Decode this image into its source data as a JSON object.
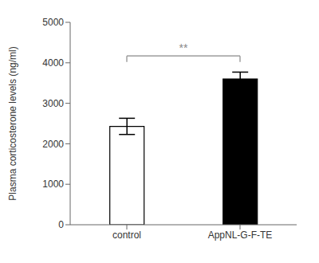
{
  "chart_data": {
    "type": "bar",
    "ylabel": "Plasma corticosterone levels (ng/ml)",
    "categories": [
      "control",
      "AppNL-G-F-TE"
    ],
    "values": [
      2430,
      3600
    ],
    "errors": [
      200,
      170
    ],
    "colors": [
      "#ffffff",
      "#000000"
    ],
    "ylim": [
      0,
      5000
    ],
    "yticks": [
      0,
      1000,
      2000,
      3000,
      4000,
      5000
    ],
    "annotations": [
      "**"
    ],
    "grid": false
  }
}
